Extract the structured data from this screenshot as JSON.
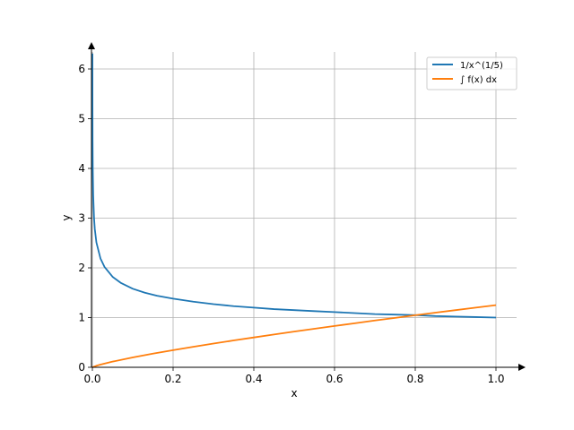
{
  "chart_data": {
    "type": "line",
    "xlabel": "x",
    "ylabel": "y",
    "xlim": [
      0,
      1.05
    ],
    "ylim": [
      0,
      6.35
    ],
    "xticks": [
      "0.0",
      "0.2",
      "0.4",
      "0.6",
      "0.8",
      "1.0"
    ],
    "yticks": [
      "0",
      "1",
      "2",
      "3",
      "4",
      "5",
      "6"
    ],
    "grid": true,
    "legend_position": "top-right",
    "series": [
      {
        "name": "1/x^(1/5)",
        "color": "#1f77b4",
        "x": [
          0.0001,
          0.0002,
          0.0005,
          0.001,
          0.002,
          0.004,
          0.006,
          0.01,
          0.02,
          0.03,
          0.05,
          0.07,
          0.1,
          0.13,
          0.16,
          0.2,
          0.25,
          0.3,
          0.35,
          0.4,
          0.45,
          0.5,
          0.55,
          0.6,
          0.65,
          0.7,
          0.75,
          0.8,
          0.85,
          0.9,
          0.95,
          1.0
        ],
        "y": [
          6.31,
          5.49,
          4.57,
          3.98,
          3.47,
          3.02,
          2.78,
          2.51,
          2.19,
          2.02,
          1.82,
          1.7,
          1.58,
          1.5,
          1.44,
          1.38,
          1.32,
          1.27,
          1.23,
          1.2,
          1.17,
          1.15,
          1.13,
          1.11,
          1.09,
          1.07,
          1.06,
          1.05,
          1.03,
          1.02,
          1.01,
          1.0
        ]
      },
      {
        "name": "∫ f(x) dx",
        "color": "#ff7f0e",
        "x": [
          0.0,
          0.01,
          0.02,
          0.05,
          0.1,
          0.15,
          0.2,
          0.25,
          0.3,
          0.35,
          0.4,
          0.45,
          0.5,
          0.55,
          0.6,
          0.65,
          0.7,
          0.75,
          0.8,
          0.85,
          0.9,
          0.95,
          1.0
        ],
        "y": [
          0.0,
          0.031,
          0.055,
          0.114,
          0.198,
          0.274,
          0.345,
          0.412,
          0.477,
          0.54,
          0.6,
          0.66,
          0.718,
          0.775,
          0.831,
          0.886,
          0.941,
          0.994,
          1.047,
          1.099,
          1.15,
          1.201,
          1.25
        ]
      }
    ]
  }
}
